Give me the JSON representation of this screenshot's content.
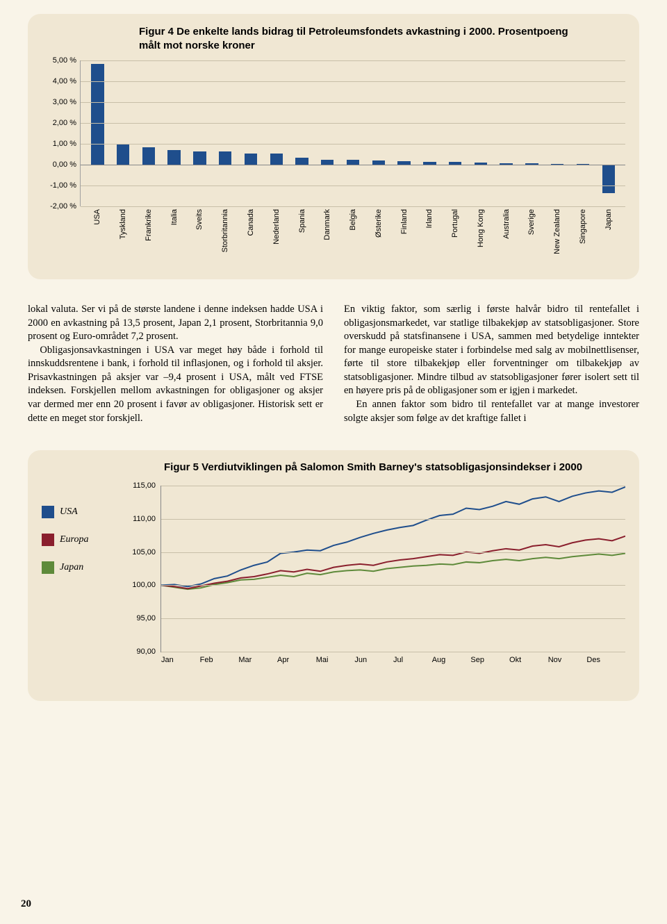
{
  "fig4": {
    "title": "Figur 4 De enkelte lands bidrag til Petroleumsfondets avkastning i 2000. Prosentpoeng målt mot norske kroner",
    "ylim": [
      -2,
      5
    ],
    "ystep": 1,
    "ytick_labels": [
      "-2,00 %",
      "-1,00 %",
      "0,00 %",
      "1,00 %",
      "2,00 %",
      "3,00 %",
      "4,00 %",
      "5,00 %"
    ],
    "baseline": 0,
    "bar_color": "#1f4e8c",
    "grid_color": "#c8bfa8",
    "axis_color": "#888888",
    "background": "#f0e7d3",
    "axis_fontsize": 11,
    "categories": [
      "USA",
      "Tyskland",
      "Frankrike",
      "Italia",
      "Sveits",
      "Storbritannia",
      "Canada",
      "Nederland",
      "Spania",
      "Danmark",
      "Belgia",
      "Østerike",
      "Finland",
      "Irland",
      "Portugal",
      "Hong Kong",
      "Australia",
      "Sverige",
      "New Zealand",
      "Singapore",
      "Japan"
    ],
    "values": [
      4.85,
      1.0,
      0.85,
      0.7,
      0.65,
      0.65,
      0.55,
      0.55,
      0.35,
      0.25,
      0.22,
      0.2,
      0.18,
      0.15,
      0.12,
      0.1,
      0.08,
      0.06,
      0.04,
      0.03,
      -1.35
    ]
  },
  "body": {
    "left": "lokal valuta. Ser vi på de største landene i denne indeksen hadde USA i 2000 en avkastning på 13,5 prosent, Japan 2,1 prosent, Storbritannia 9,0 prosent og Euro-området 7,2 prosent.",
    "left_p2": "Obligasjonsavkastningen i USA var meget høy både i forhold til innskuddsrentene i bank, i forhold til inflasjonen, og i forhold til aksjer. Prisavkastningen på aksjer var –9,4 prosent i USA, målt ved FTSE indeksen. Forskjellen mellom avkastningen for obligasjoner og aksjer var dermed mer enn 20 prosent i favør av obligasjoner. Historisk sett er dette en meget stor forskjell.",
    "right": "En viktig faktor, som særlig i første halvår bidro til rentefallet i obligasjonsmarkedet, var statlige tilbakekjøp av statsobligasjoner. Store overskudd på statsfinansene i USA, sammen med betydelige inntekter for mange europeiske stater i forbindelse med salg av mobilnettlisenser, førte til store tilbakekjøp eller forventninger om tilbakekjøp av statsobligasjoner. Mindre tilbud av statsobligasjoner fører isolert sett til en høyere pris på de obligasjoner som er igjen i markedet.",
    "right_p2": "En annen faktor som bidro til rentefallet var at mange investorer solgte aksjer som følge av det kraftige fallet i"
  },
  "fig5": {
    "title": "Figur 5 Verdiutviklingen på Salomon Smith Barney's statsobligasjonsindekser i 2000",
    "ylim": [
      90,
      115
    ],
    "ystep": 5,
    "ytick_labels": [
      "90,00",
      "95,00",
      "100,00",
      "105,00",
      "110,00",
      "115,00"
    ],
    "grid_color": "#c8bfa8",
    "axis_color": "#888888",
    "background": "#f0e7d3",
    "axis_fontsize": 11,
    "months": [
      "Jan",
      "Feb",
      "Mar",
      "Apr",
      "Mai",
      "Jun",
      "Jul",
      "Aug",
      "Sep",
      "Okt",
      "Nov",
      "Des"
    ],
    "legend": [
      {
        "label": "USA",
        "color": "#1f4e8c"
      },
      {
        "label": "Europa",
        "color": "#8a1f2d"
      },
      {
        "label": "Japan",
        "color": "#5e8a3a"
      }
    ],
    "series": {
      "usa": [
        100,
        100.1,
        99.8,
        100.2,
        101.0,
        101.4,
        102.3,
        103.0,
        103.5,
        104.8,
        105.0,
        105.3,
        105.2,
        106.0,
        106.5,
        107.2,
        107.8,
        108.3,
        108.7,
        109.0,
        109.8,
        110.5,
        110.7,
        111.6,
        111.4,
        111.9,
        112.6,
        112.2,
        113.0,
        113.3,
        112.6,
        113.4,
        113.9,
        114.2,
        114.0,
        114.8
      ],
      "europa": [
        100,
        99.8,
        99.5,
        99.9,
        100.3,
        100.6,
        101.1,
        101.3,
        101.7,
        102.2,
        102.0,
        102.4,
        102.1,
        102.7,
        103.0,
        103.2,
        103.0,
        103.5,
        103.8,
        104.0,
        104.3,
        104.6,
        104.5,
        105.0,
        104.8,
        105.2,
        105.5,
        105.3,
        105.9,
        106.1,
        105.8,
        106.4,
        106.8,
        107.0,
        106.7,
        107.4
      ],
      "japan": [
        100,
        99.7,
        99.4,
        99.6,
        100.1,
        100.4,
        100.8,
        100.9,
        101.2,
        101.5,
        101.3,
        101.8,
        101.6,
        102.0,
        102.2,
        102.3,
        102.1,
        102.5,
        102.7,
        102.9,
        103.0,
        103.2,
        103.1,
        103.5,
        103.4,
        103.7,
        103.9,
        103.7,
        104.0,
        104.2,
        104.0,
        104.3,
        104.5,
        104.7,
        104.5,
        104.8
      ]
    }
  },
  "page_number": "20"
}
